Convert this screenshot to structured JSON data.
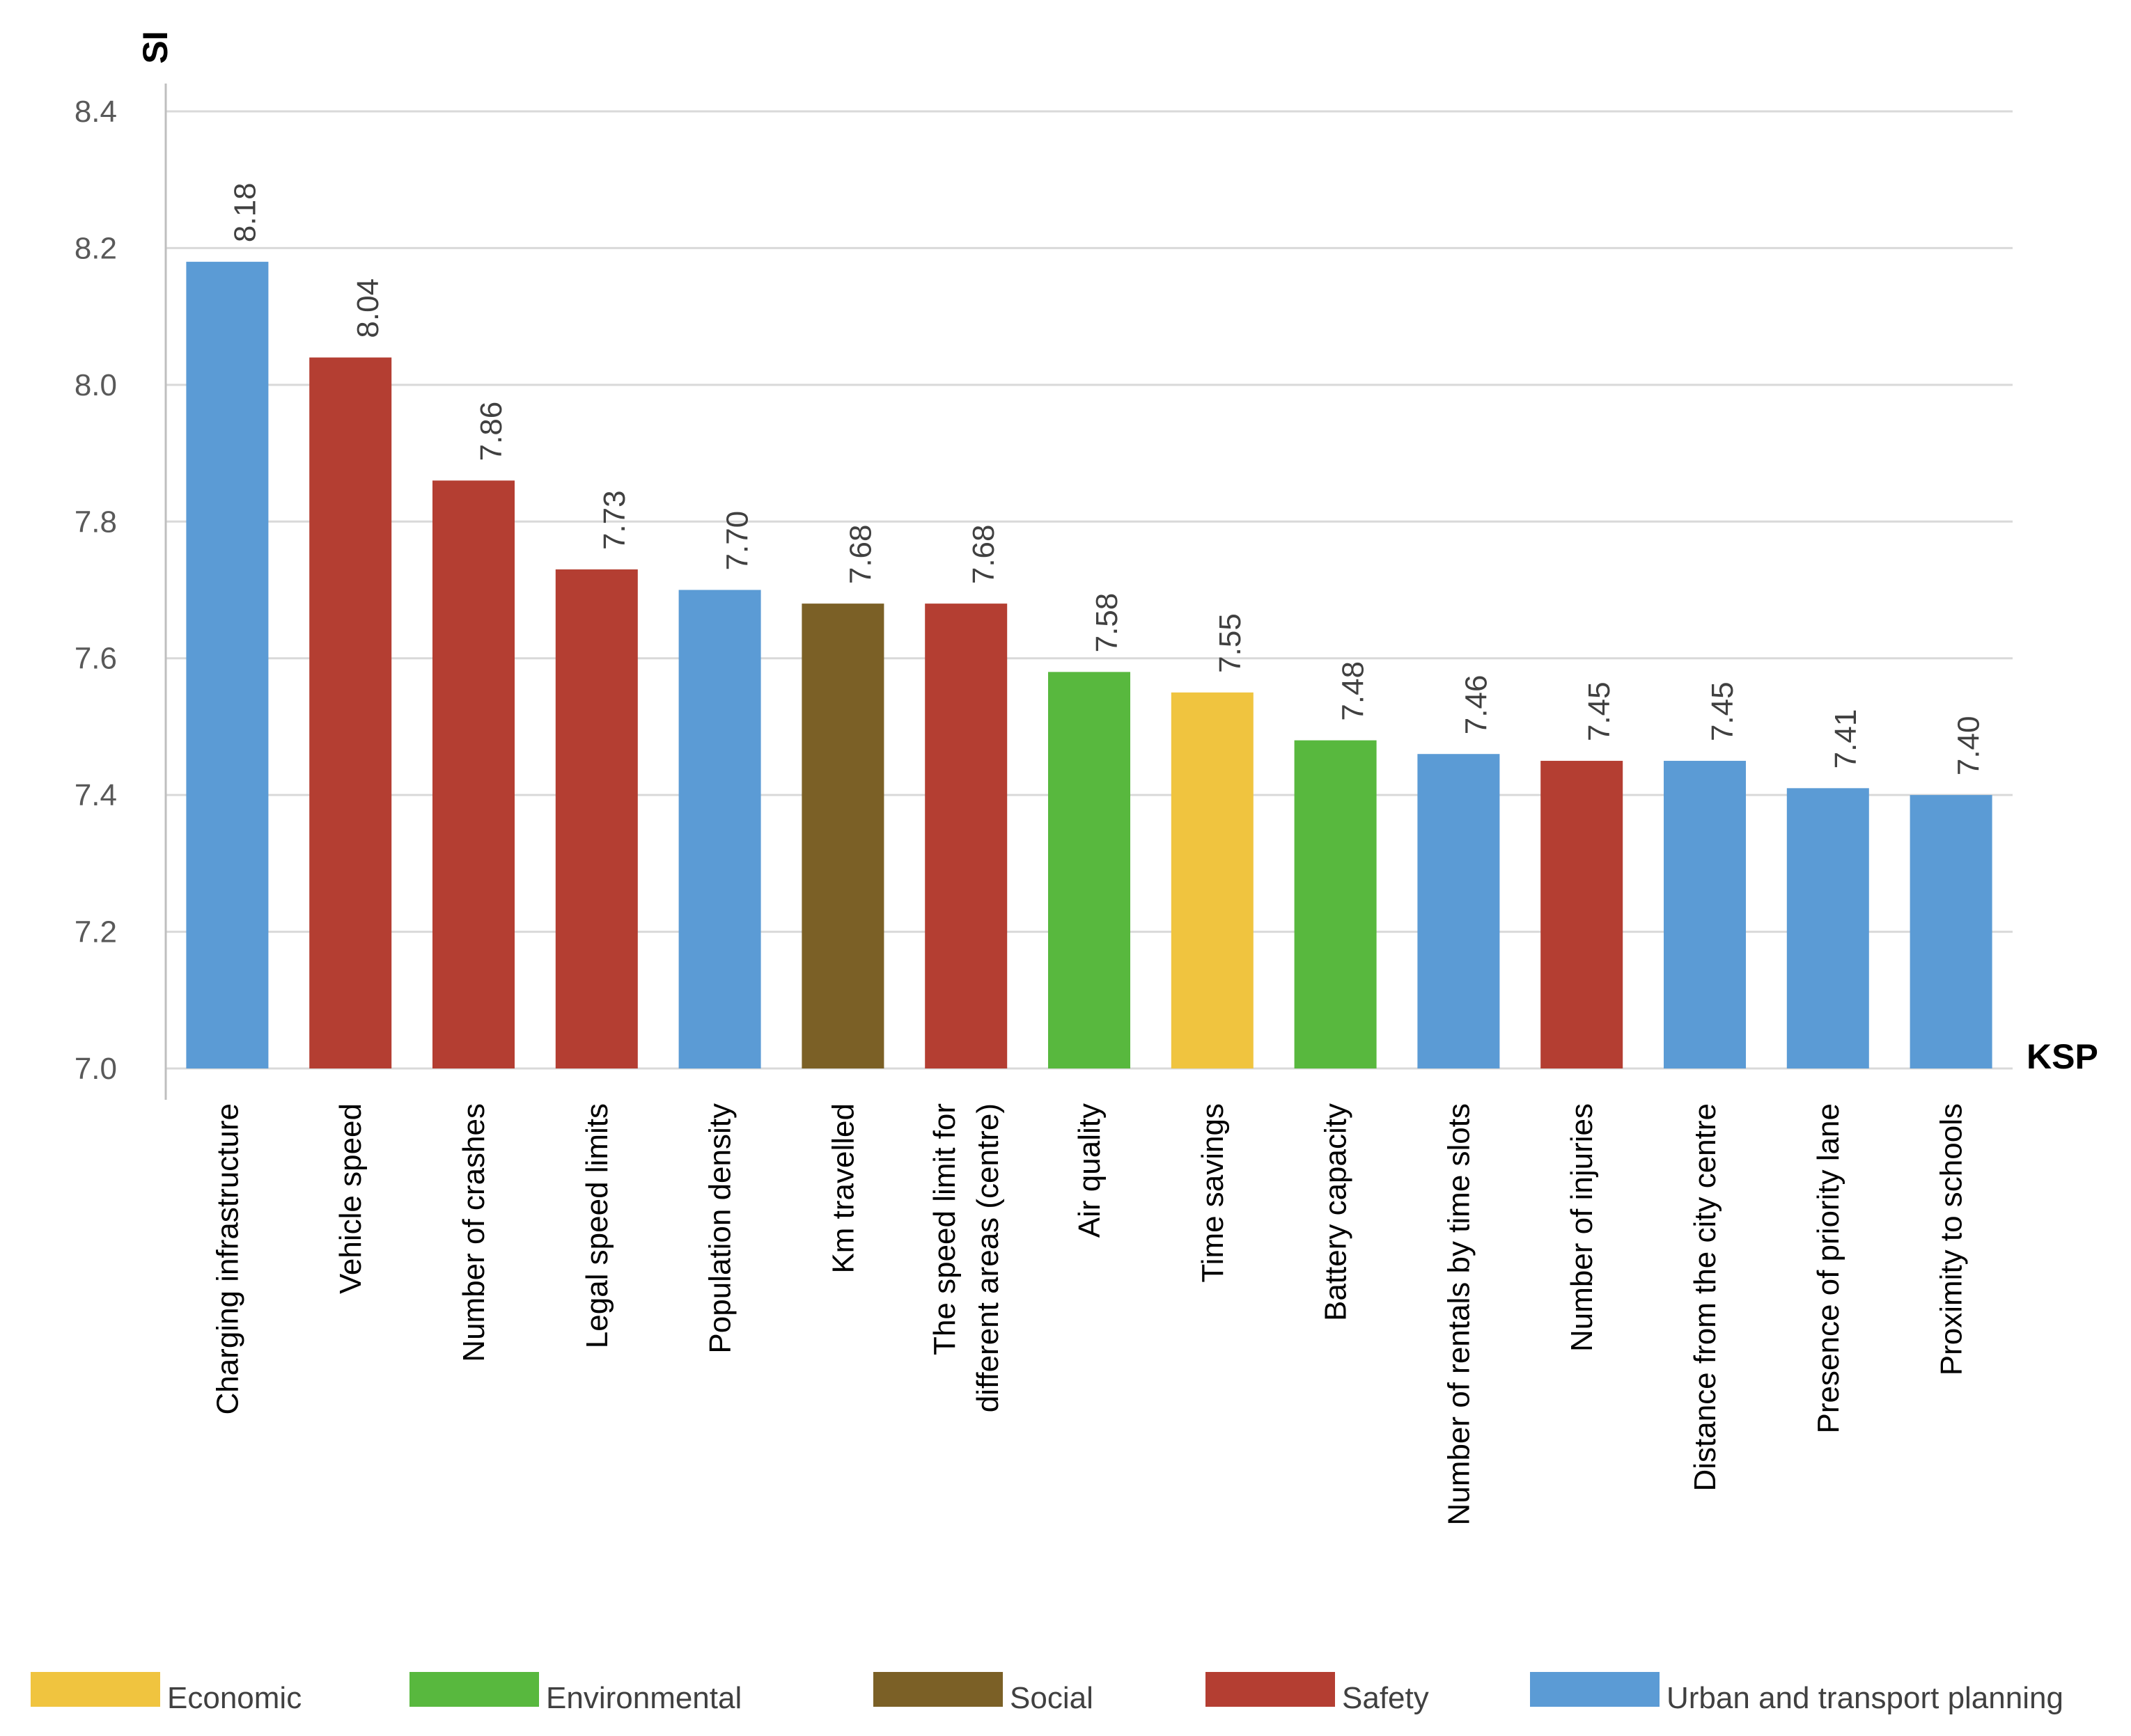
{
  "chart_data": {
    "type": "bar",
    "ylabel": "SI",
    "xlabel": "KSP",
    "ylim": [
      7.0,
      8.4
    ],
    "yticks": [
      "7.0",
      "7.2",
      "7.4",
      "7.6",
      "7.8",
      "8.0",
      "8.2",
      "8.4"
    ],
    "ytick_values": [
      7.0,
      7.2,
      7.4,
      7.6,
      7.8,
      8.0,
      8.2,
      8.4
    ],
    "grid": true,
    "legend_position": "bottom",
    "categories": [
      "Charging infrastructure",
      "Vehicle speed",
      "Number of crashes",
      "Legal speed limits",
      "Population density",
      "Km travelled",
      "The speed limit for different areas (centre)",
      "Air quality",
      "Time savings",
      "Battery capacity",
      "Number of rentals by time slots",
      "Number of injuries",
      "Distance from the city centre",
      "Presence of priority lane",
      "Proximity to schools"
    ],
    "category_lines": [
      [
        "Charging infrastructure"
      ],
      [
        "Vehicle speed"
      ],
      [
        "Number of crashes"
      ],
      [
        "Legal speed limits"
      ],
      [
        "Population density"
      ],
      [
        "Km travelled"
      ],
      [
        "The speed limit for",
        "different areas (centre)"
      ],
      [
        "Air quality"
      ],
      [
        "Time savings"
      ],
      [
        "Battery capacity"
      ],
      [
        "Number of rentals by time slots"
      ],
      [
        "Number of injuries"
      ],
      [
        "Distance from the city centre"
      ],
      [
        "Presence of priority lane"
      ],
      [
        "Proximity to schools"
      ]
    ],
    "values": [
      8.18,
      8.04,
      7.86,
      7.73,
      7.7,
      7.68,
      7.68,
      7.58,
      7.55,
      7.48,
      7.46,
      7.45,
      7.45,
      7.41,
      7.4
    ],
    "value_labels": [
      "8.18",
      "8.04",
      "7.86",
      "7.73",
      "7.70",
      "7.68",
      "7.68",
      "7.58",
      "7.55",
      "7.48",
      "7.46",
      "7.45",
      "7.45",
      "7.41",
      "7.40"
    ],
    "groups": [
      "Urban and transport planning",
      "Safety",
      "Safety",
      "Safety",
      "Urban and transport planning",
      "Social",
      "Safety",
      "Environmental",
      "Economic",
      "Environmental",
      "Urban and transport planning",
      "Safety",
      "Urban and transport planning",
      "Urban and transport planning",
      "Urban and transport planning"
    ],
    "legend": [
      {
        "name": "Economic",
        "color": "#f0c43f"
      },
      {
        "name": "Environmental",
        "color": "#58b83e"
      },
      {
        "name": "Social",
        "color": "#7b6026"
      },
      {
        "name": "Safety",
        "color": "#b43e32"
      },
      {
        "name": "Urban and transport planning",
        "color": "#5b9bd5"
      }
    ]
  }
}
